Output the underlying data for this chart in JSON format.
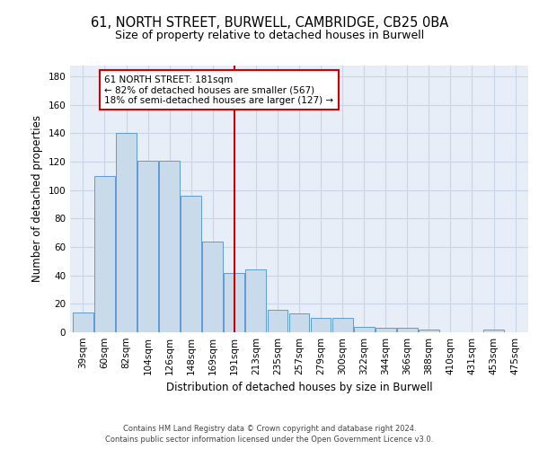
{
  "title_line1": "61, NORTH STREET, BURWELL, CAMBRIDGE, CB25 0BA",
  "title_line2": "Size of property relative to detached houses in Burwell",
  "xlabel": "Distribution of detached houses by size in Burwell",
  "ylabel": "Number of detached properties",
  "footer_line1": "Contains HM Land Registry data © Crown copyright and database right 2024.",
  "footer_line2": "Contains public sector information licensed under the Open Government Licence v3.0.",
  "categories": [
    "39sqm",
    "60sqm",
    "82sqm",
    "104sqm",
    "126sqm",
    "148sqm",
    "169sqm",
    "191sqm",
    "213sqm",
    "235sqm",
    "257sqm",
    "279sqm",
    "300sqm",
    "322sqm",
    "344sqm",
    "366sqm",
    "388sqm",
    "410sqm",
    "431sqm",
    "453sqm",
    "475sqm"
  ],
  "values": [
    14,
    110,
    140,
    121,
    121,
    96,
    64,
    42,
    44,
    16,
    13,
    10,
    10,
    4,
    3,
    3,
    2,
    0,
    0,
    2,
    0
  ],
  "bar_color": "#c9daea",
  "bar_edge_color": "#5b9bd5",
  "vline_x": 7,
  "vline_color": "#cc0000",
  "annotation_text": "61 NORTH STREET: 181sqm\n← 82% of detached houses are smaller (567)\n18% of semi-detached houses are larger (127) →",
  "annotation_box_color": "#ffffff",
  "annotation_box_edge": "#cc0000",
  "ylim": [
    0,
    188
  ],
  "yticks": [
    0,
    20,
    40,
    60,
    80,
    100,
    120,
    140,
    160,
    180
  ],
  "grid_color": "#c8d4e8",
  "background_color": "#e8eef8",
  "title_fontsize": 10.5,
  "subtitle_fontsize": 9,
  "ylabel_fontsize": 8.5,
  "xlabel_fontsize": 8.5,
  "tick_fontsize": 7.5,
  "footer_fontsize": 6.0
}
